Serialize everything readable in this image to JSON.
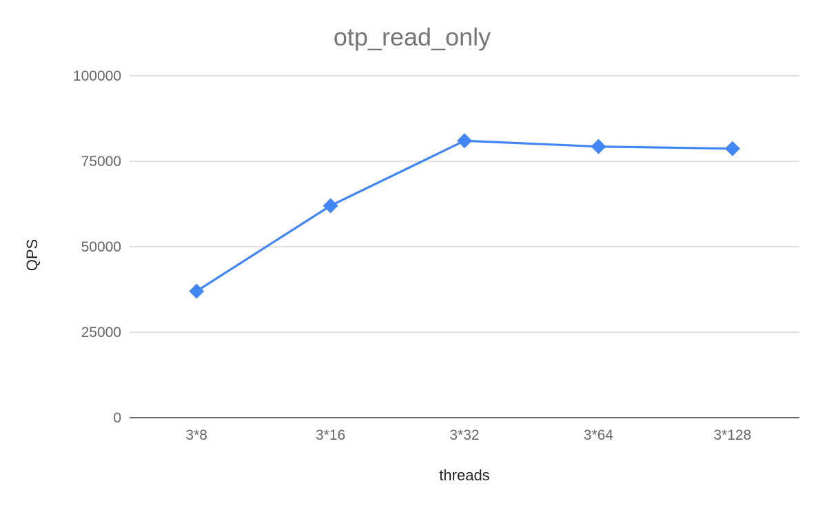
{
  "chart_data": {
    "type": "line",
    "title": "otp_read_only",
    "xlabel": "threads",
    "ylabel": "QPS",
    "categories": [
      "3*8",
      "3*16",
      "3*32",
      "3*64",
      "3*128"
    ],
    "series": [
      {
        "values": [
          37000,
          62000,
          81000,
          79300,
          78700
        ],
        "color": "#4285F4",
        "marker": "diamond"
      }
    ],
    "ylim": [
      0,
      100000
    ],
    "yticks": [
      0,
      25000,
      50000,
      75000,
      100000
    ],
    "ytick_labels": [
      "0",
      "25000",
      "50000",
      "75000",
      "100000"
    ],
    "grid": true,
    "legend": "none"
  }
}
